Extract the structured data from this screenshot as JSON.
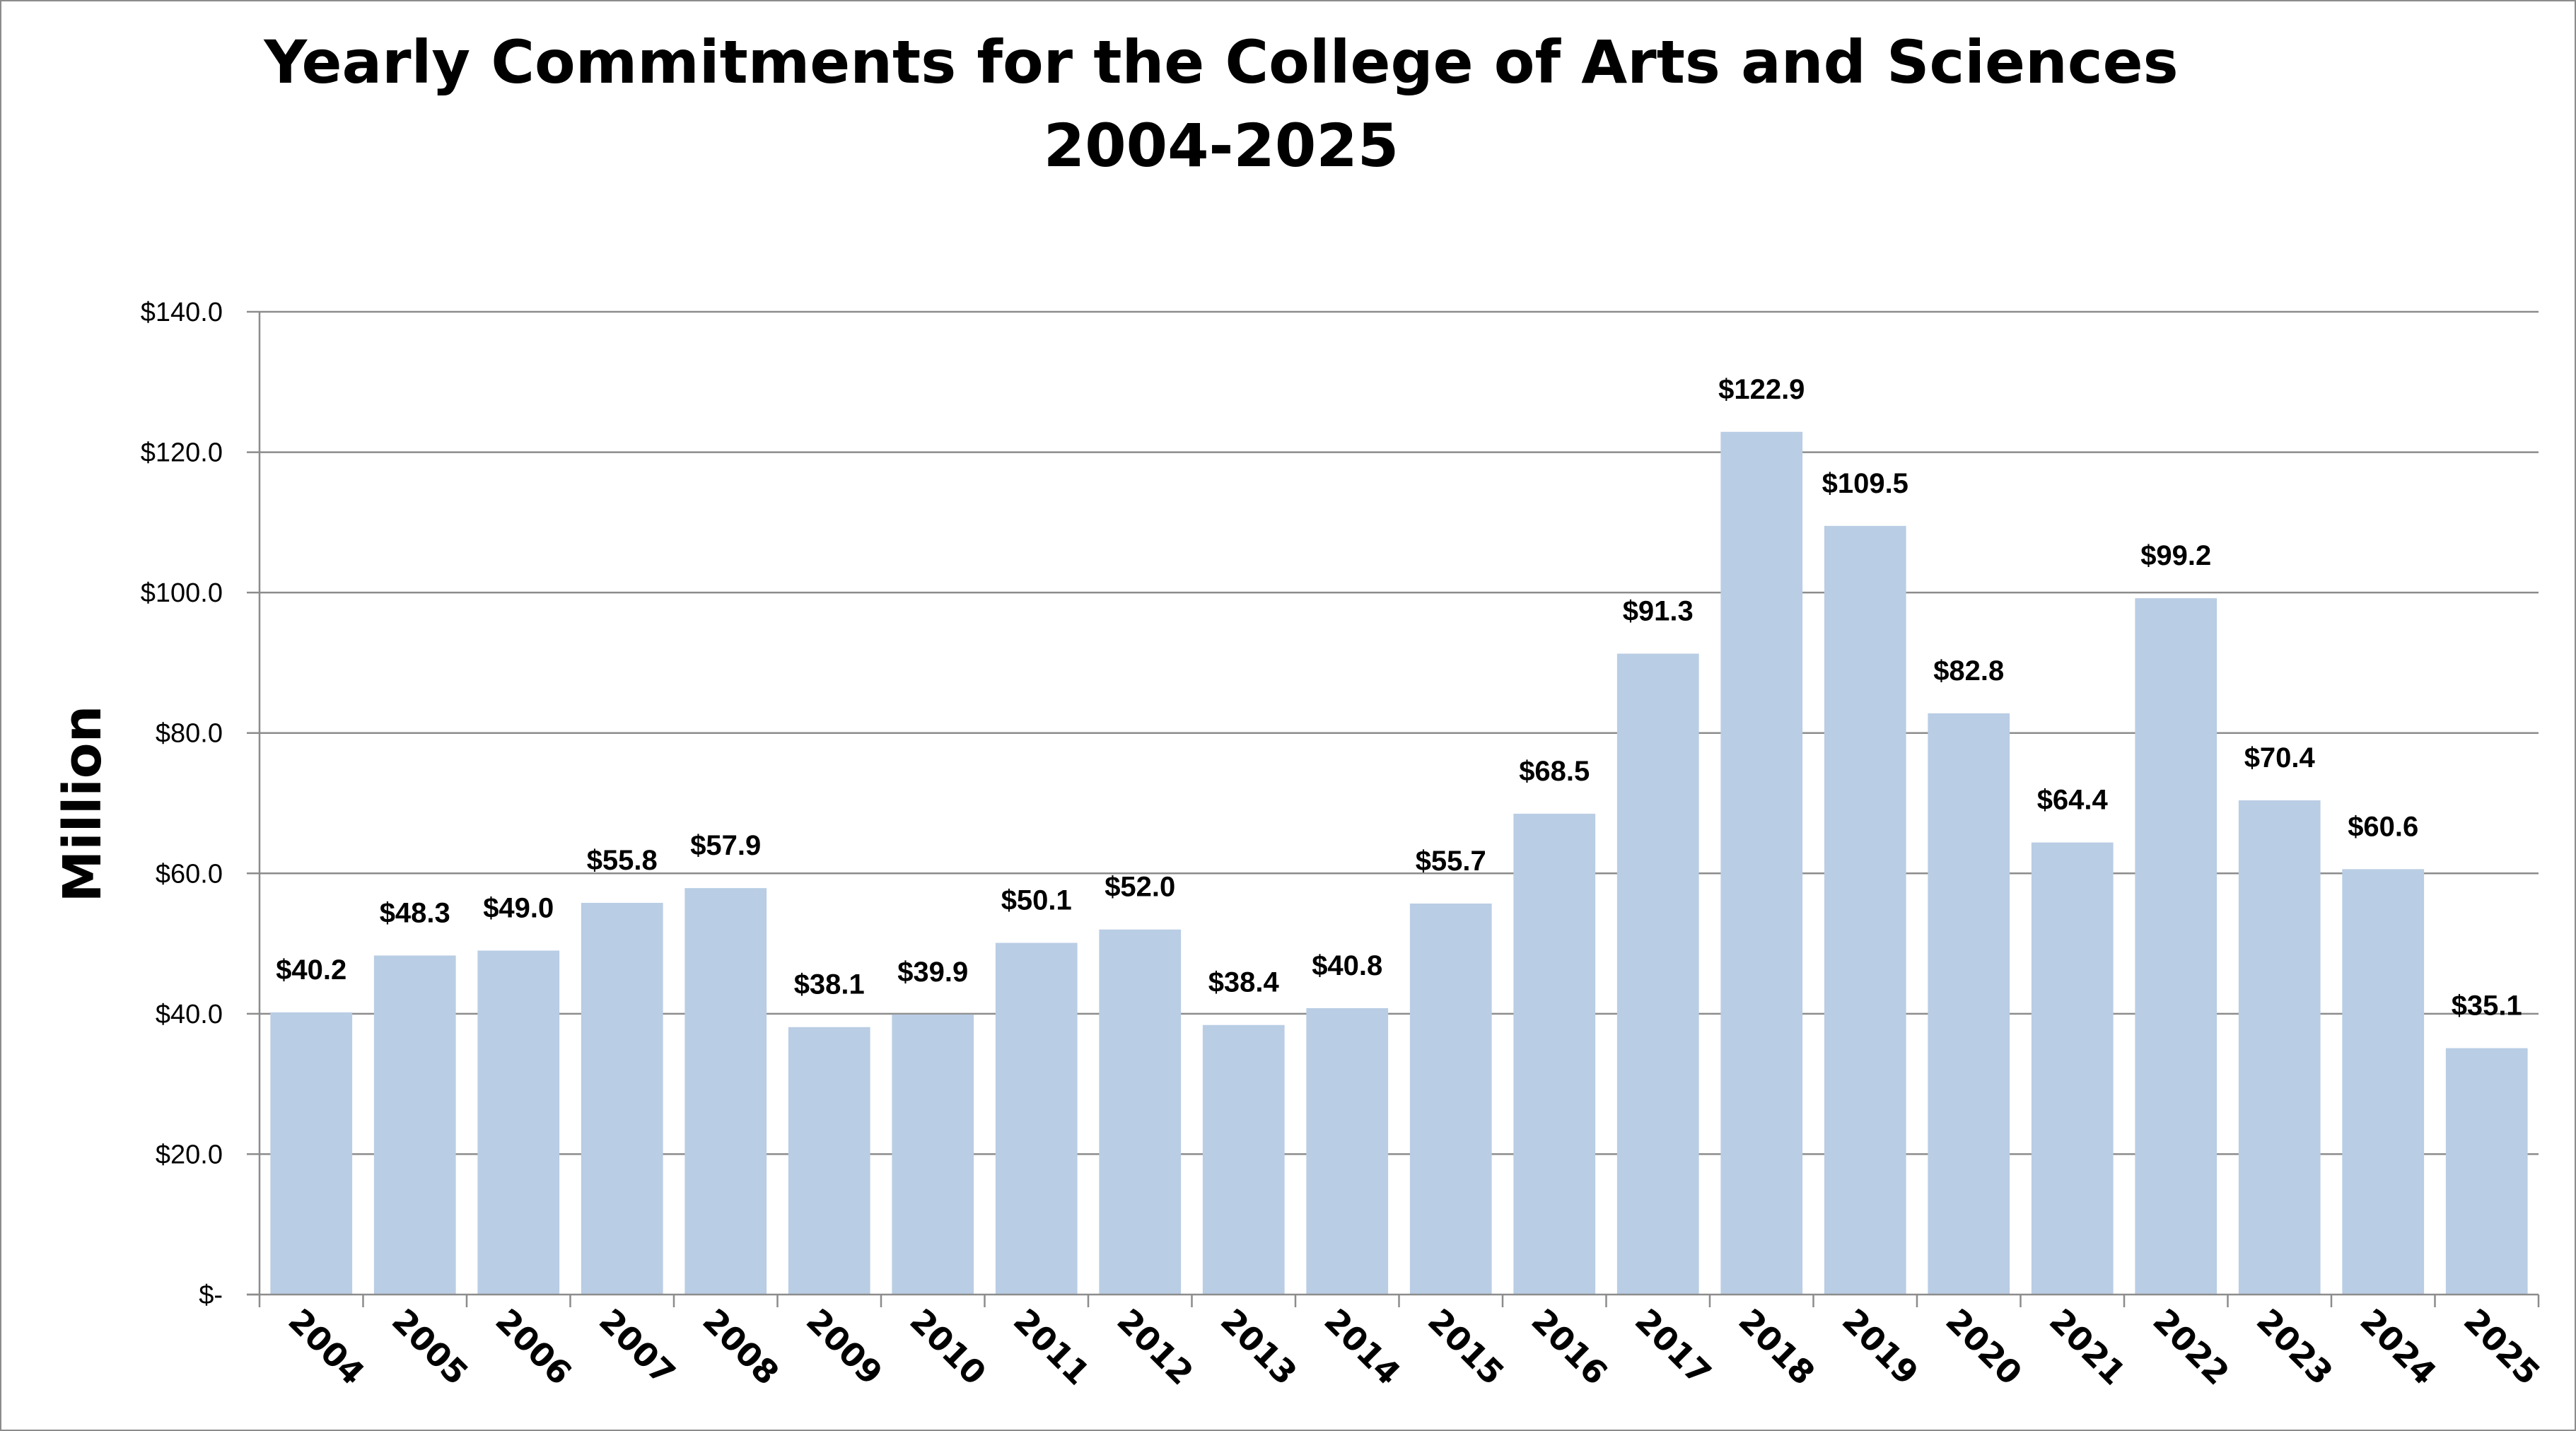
{
  "chart_data": {
    "type": "bar",
    "title": "Yearly Commitments for the College of Arts and Sciences",
    "subtitle": "2004-2025",
    "ylabel": "Million",
    "xlabel": "",
    "ylim": [
      0,
      140
    ],
    "yticks": [
      0,
      20,
      40,
      60,
      80,
      100,
      120,
      140
    ],
    "ytick_labels": [
      "$-",
      "$20.0",
      "$40.0",
      "$60.0",
      "$80.0",
      "$100.0",
      "$120.0",
      "$140.0"
    ],
    "grid": true,
    "legend": "none",
    "bar_color": "#b9cde4",
    "categories": [
      "2004",
      "2005",
      "2006",
      "2007",
      "2008",
      "2009",
      "2010",
      "2011",
      "2012",
      "2013",
      "2014",
      "2015",
      "2016",
      "2017",
      "2018",
      "2019",
      "2020",
      "2021",
      "2022",
      "2023",
      "2024",
      "2025"
    ],
    "values": [
      40.2,
      48.3,
      49.0,
      55.8,
      57.9,
      38.1,
      39.9,
      50.1,
      52.0,
      38.4,
      40.8,
      55.7,
      68.5,
      91.3,
      122.9,
      109.5,
      82.8,
      64.4,
      99.2,
      70.4,
      60.6,
      35.1
    ],
    "data_labels": [
      "$40.2",
      "$48.3",
      "$49.0",
      "$55.8",
      "$57.9",
      "$38.1",
      "$39.9",
      "$50.1",
      "$52.0",
      "$38.4",
      "$40.8",
      "$55.7",
      "$68.5",
      "$91.3",
      "$122.9",
      "$109.5",
      "$82.8",
      "$64.4",
      "$99.2",
      "$70.4",
      "$60.6",
      "$35.1"
    ]
  }
}
